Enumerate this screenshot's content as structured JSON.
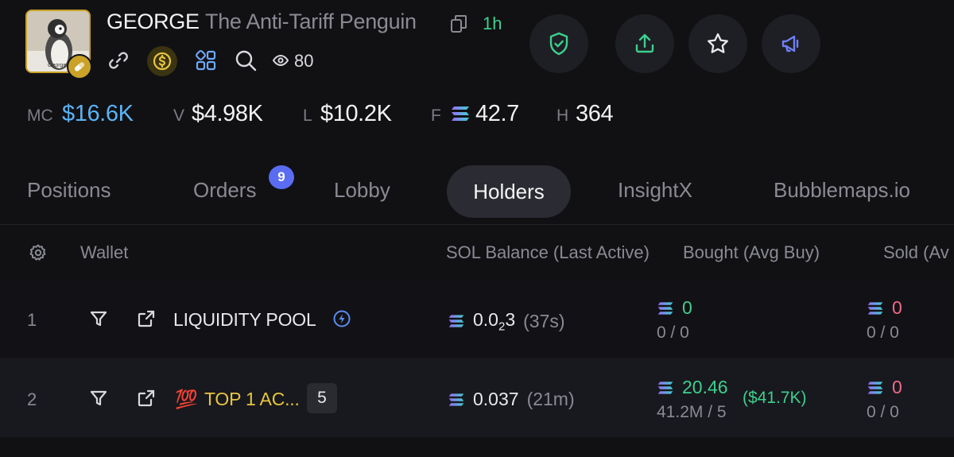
{
  "token": {
    "ticker": "GEORGE",
    "name": "The Anti-Tariff Penguin",
    "age": "1h",
    "avatar_caption": "George",
    "views": "80"
  },
  "stats": [
    {
      "label": "MC",
      "value": "$16.6K"
    },
    {
      "label": "V",
      "value": "$4.98K"
    },
    {
      "label": "L",
      "value": "$10.2K"
    },
    {
      "label": "F",
      "value": "42.7"
    },
    {
      "label": "H",
      "value": "364"
    }
  ],
  "tabs": [
    {
      "label": "Positions"
    },
    {
      "label": "Orders",
      "badge": "9"
    },
    {
      "label": "Lobby"
    },
    {
      "label": "Holders",
      "active": true
    },
    {
      "label": "InsightX"
    },
    {
      "label": "Bubblemaps.io"
    }
  ],
  "table": {
    "headers": {
      "wallet": "Wallet",
      "sol_balance": "SOL Balance (Last Active)",
      "bought": "Bought (Avg Buy)",
      "sold": "Sold (Av"
    },
    "rows": [
      {
        "rank": "1",
        "wallet": "LIQUIDITY POOL",
        "sol_balance_main": "0.0",
        "sol_balance_sub": "2",
        "sol_balance_tail": "3",
        "last_active": "(37s)",
        "bought": "0",
        "bought_sub": "0 / 0",
        "sold": "0",
        "sold_sub": "0 / 0"
      },
      {
        "rank": "2",
        "wallet_emoji": "💯",
        "wallet": "TOP 1 AC...",
        "wallet_count": "5",
        "sol_balance": "0.037",
        "last_active": "(21m)",
        "bought": "20.46",
        "bought_usd": "($41.7K)",
        "bought_sub": "41.2M / 5",
        "sold": "0",
        "sold_sub": "0 / 0"
      }
    ]
  },
  "colors": {
    "background": "#111114",
    "accent_blue": "#5ab3f5",
    "green": "#3ecf8e",
    "pink": "#f06b8b",
    "gold": "#e7c440",
    "badge_purple": "#5a6cf2"
  },
  "icons": [
    "pill-icon",
    "copy-icon",
    "link-icon",
    "coin-icon",
    "grid-icon",
    "search-icon",
    "eye-icon",
    "shield-check-icon",
    "share-icon",
    "star-icon",
    "megaphone-icon",
    "gear-icon",
    "filter-icon",
    "external-link-icon",
    "lightning-icon",
    "solana-icon"
  ]
}
